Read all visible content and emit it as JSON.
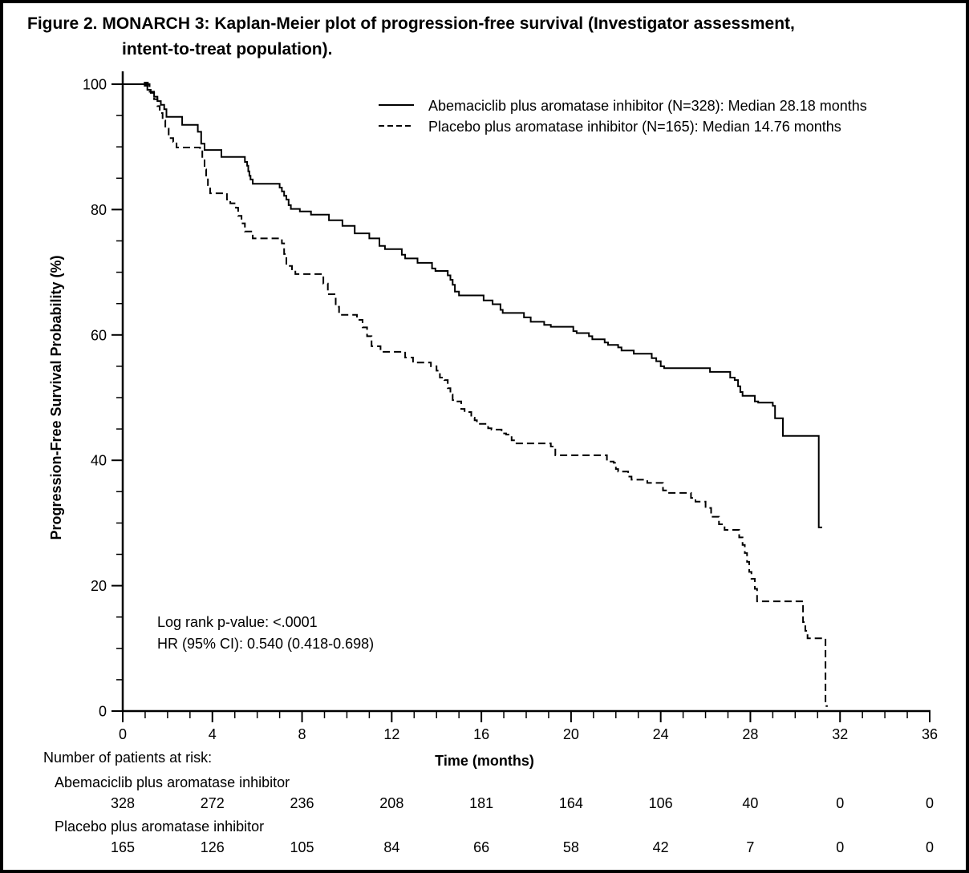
{
  "figure": {
    "title_line1": "Figure 2. MONARCH 3: Kaplan-Meier plot of progression-free survival (Investigator assessment,",
    "title_line2": "intent-to-treat population)."
  },
  "chart_data": {
    "type": "line",
    "subtype": "kaplan-meier-step",
    "title": "MONARCH 3: Kaplan-Meier plot of progression-free survival (Investigator assessment, intent-to-treat population)",
    "xlabel": "Time (months)",
    "ylabel": "Progression-Free Survival Probability (%)",
    "xlim": [
      0,
      36
    ],
    "ylim": [
      0,
      100
    ],
    "x_axis": {
      "major_ticks": [
        0,
        4,
        8,
        12,
        16,
        20,
        24,
        28,
        32,
        36
      ],
      "minor_step": 1
    },
    "y_axis": {
      "major_ticks": [
        0,
        20,
        40,
        60,
        80,
        100
      ],
      "minor_step": 5
    },
    "grid": false,
    "legend_position": "top-right-inside",
    "line_color": "#000000",
    "legend": [
      {
        "label": "Abemaciclib plus aromatase inhibitor (N=328): Median 28.18 months",
        "style": "solid"
      },
      {
        "label": "Placebo plus aromatase inhibitor (N=165): Median 14.76 months",
        "style": "dashed"
      }
    ],
    "annotations": [
      "Log rank p-value: <.0001",
      "HR (95% CI): 0.540 (0.418-0.698)"
    ],
    "series": [
      {
        "name": "Abemaciclib plus aromatase inhibitor",
        "n": 328,
        "median_months": 28.18,
        "style": "solid",
        "end_t": 31.2,
        "censor_marks": [
          [
            1.05,
            100
          ]
        ],
        "steps": [
          [
            0,
            100
          ],
          [
            1.1,
            99.1
          ],
          [
            1.25,
            98.6
          ],
          [
            1.4,
            98.0
          ],
          [
            1.55,
            97.3
          ],
          [
            1.7,
            96.7
          ],
          [
            1.85,
            96.0
          ],
          [
            1.95,
            94.8
          ],
          [
            2.65,
            93.5
          ],
          [
            3.35,
            92.4
          ],
          [
            3.5,
            90.5
          ],
          [
            3.65,
            89.5
          ],
          [
            4.4,
            88.4
          ],
          [
            5.45,
            87.6
          ],
          [
            5.55,
            87.0
          ],
          [
            5.6,
            86.1
          ],
          [
            5.65,
            85.4
          ],
          [
            5.7,
            84.8
          ],
          [
            5.8,
            84.1
          ],
          [
            7.0,
            83.5
          ],
          [
            7.1,
            82.9
          ],
          [
            7.2,
            82.2
          ],
          [
            7.3,
            81.6
          ],
          [
            7.4,
            80.7
          ],
          [
            7.5,
            80.1
          ],
          [
            7.9,
            79.7
          ],
          [
            8.4,
            79.2
          ],
          [
            9.2,
            78.3
          ],
          [
            9.8,
            77.4
          ],
          [
            10.35,
            76.2
          ],
          [
            11.0,
            75.4
          ],
          [
            11.45,
            74.2
          ],
          [
            11.7,
            73.7
          ],
          [
            12.45,
            72.8
          ],
          [
            12.6,
            72.2
          ],
          [
            13.15,
            71.5
          ],
          [
            13.8,
            70.6
          ],
          [
            13.95,
            70.2
          ],
          [
            14.5,
            69.5
          ],
          [
            14.62,
            68.8
          ],
          [
            14.72,
            68.0
          ],
          [
            14.82,
            66.9
          ],
          [
            15.0,
            66.3
          ],
          [
            16.1,
            65.5
          ],
          [
            16.5,
            64.9
          ],
          [
            16.85,
            64.0
          ],
          [
            16.95,
            63.5
          ],
          [
            17.9,
            62.8
          ],
          [
            18.2,
            62.1
          ],
          [
            18.8,
            61.6
          ],
          [
            19.1,
            61.3
          ],
          [
            20.1,
            60.6
          ],
          [
            20.25,
            60.3
          ],
          [
            20.8,
            59.8
          ],
          [
            20.95,
            59.3
          ],
          [
            21.5,
            58.8
          ],
          [
            21.65,
            58.4
          ],
          [
            22.1,
            58.0
          ],
          [
            22.25,
            57.5
          ],
          [
            22.8,
            57.0
          ],
          [
            23.6,
            56.3
          ],
          [
            23.8,
            55.8
          ],
          [
            24.0,
            55.0
          ],
          [
            24.15,
            54.7
          ],
          [
            26.2,
            54.1
          ],
          [
            27.1,
            53.2
          ],
          [
            27.3,
            52.8
          ],
          [
            27.45,
            51.8
          ],
          [
            27.55,
            50.9
          ],
          [
            27.65,
            50.3
          ],
          [
            28.2,
            49.4
          ],
          [
            28.35,
            49.2
          ],
          [
            29.0,
            48.7
          ],
          [
            29.1,
            46.7
          ],
          [
            29.45,
            43.9
          ],
          [
            31.05,
            29.3
          ]
        ]
      },
      {
        "name": "Placebo plus aromatase inhibitor",
        "n": 165,
        "median_months": 14.76,
        "style": "dashed",
        "end_t": 31.45,
        "censor_marks": [],
        "steps": [
          [
            0,
            100
          ],
          [
            1.2,
            98.8
          ],
          [
            1.4,
            97.6
          ],
          [
            1.55,
            96.5
          ],
          [
            1.65,
            95.4
          ],
          [
            1.78,
            94.2
          ],
          [
            1.9,
            92.9
          ],
          [
            2.05,
            91.4
          ],
          [
            2.25,
            90.8
          ],
          [
            2.4,
            89.9
          ],
          [
            3.45,
            89.3
          ],
          [
            3.55,
            88.0
          ],
          [
            3.65,
            86.4
          ],
          [
            3.72,
            85.2
          ],
          [
            3.8,
            83.9
          ],
          [
            3.9,
            82.6
          ],
          [
            4.65,
            81.6
          ],
          [
            4.8,
            81.0
          ],
          [
            5.05,
            80.3
          ],
          [
            5.15,
            79.0
          ],
          [
            5.3,
            77.8
          ],
          [
            5.45,
            76.5
          ],
          [
            5.8,
            75.4
          ],
          [
            7.1,
            74.6
          ],
          [
            7.2,
            72.9
          ],
          [
            7.3,
            71.0
          ],
          [
            7.55,
            70.3
          ],
          [
            7.7,
            69.7
          ],
          [
            8.95,
            68.2
          ],
          [
            9.15,
            66.5
          ],
          [
            9.5,
            64.5
          ],
          [
            9.65,
            63.2
          ],
          [
            10.45,
            62.4
          ],
          [
            10.7,
            61.2
          ],
          [
            10.9,
            59.8
          ],
          [
            11.1,
            58.2
          ],
          [
            11.5,
            57.3
          ],
          [
            12.6,
            56.4
          ],
          [
            12.95,
            55.6
          ],
          [
            13.75,
            55.0
          ],
          [
            14.0,
            54.3
          ],
          [
            14.15,
            53.2
          ],
          [
            14.35,
            52.8
          ],
          [
            14.5,
            51.5
          ],
          [
            14.62,
            50.5
          ],
          [
            14.72,
            49.6
          ],
          [
            14.8,
            49.4
          ],
          [
            15.1,
            48.2
          ],
          [
            15.25,
            47.7
          ],
          [
            15.55,
            46.8
          ],
          [
            15.7,
            46.4
          ],
          [
            15.8,
            45.8
          ],
          [
            16.3,
            45.1
          ],
          [
            16.45,
            44.9
          ],
          [
            16.9,
            44.3
          ],
          [
            17.1,
            44.1
          ],
          [
            17.35,
            43.2
          ],
          [
            17.5,
            42.7
          ],
          [
            19.1,
            42.2
          ],
          [
            19.3,
            40.8
          ],
          [
            21.6,
            39.8
          ],
          [
            21.9,
            39.6
          ],
          [
            22.0,
            38.6
          ],
          [
            22.1,
            38.2
          ],
          [
            22.55,
            37.4
          ],
          [
            22.7,
            36.9
          ],
          [
            23.4,
            36.4
          ],
          [
            24.1,
            35.2
          ],
          [
            24.3,
            34.8
          ],
          [
            25.35,
            34.0
          ],
          [
            25.55,
            33.4
          ],
          [
            26.0,
            32.4
          ],
          [
            26.25,
            31.0
          ],
          [
            26.6,
            29.8
          ],
          [
            26.85,
            28.9
          ],
          [
            27.5,
            27.7
          ],
          [
            27.65,
            26.5
          ],
          [
            27.75,
            25.2
          ],
          [
            27.85,
            23.8
          ],
          [
            27.95,
            22.2
          ],
          [
            28.05,
            21.1
          ],
          [
            28.2,
            19.5
          ],
          [
            28.3,
            17.5
          ],
          [
            30.35,
            14.2
          ],
          [
            30.45,
            12.8
          ],
          [
            30.55,
            11.6
          ],
          [
            31.35,
            0.8
          ]
        ]
      }
    ]
  },
  "risk_table": {
    "heading": "Number of patients at risk:",
    "times": [
      0,
      4,
      8,
      12,
      16,
      20,
      24,
      28,
      32,
      36
    ],
    "rows": [
      {
        "label": "Abemaciclib plus aromatase inhibitor",
        "counts": [
          328,
          272,
          236,
          208,
          181,
          164,
          106,
          40,
          0,
          0
        ]
      },
      {
        "label": "Placebo plus aromatase inhibitor",
        "counts": [
          165,
          126,
          105,
          84,
          66,
          58,
          42,
          7,
          0,
          0
        ]
      }
    ]
  }
}
